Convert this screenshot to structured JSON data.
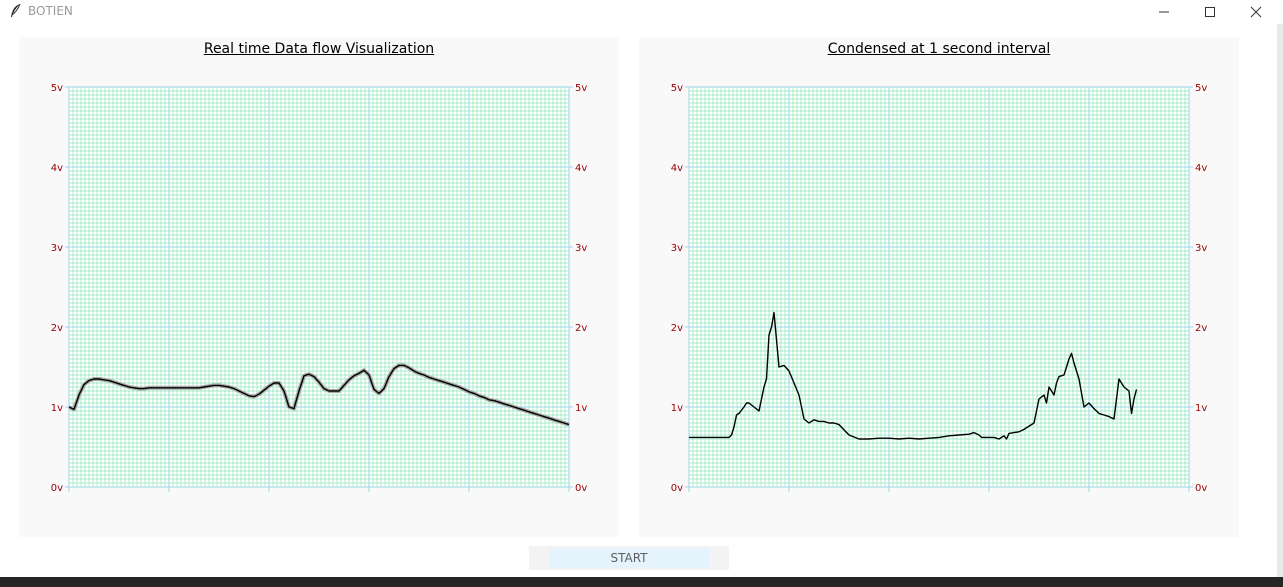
{
  "window": {
    "title": "BOTIEN",
    "icon": "feather-icon"
  },
  "colors": {
    "grid_minor": "#8fe6b8",
    "grid_major": "#9ad5ea",
    "tick_label": "#990000",
    "trace": "#000000",
    "trace_shadow": "#a8a8a8",
    "button_bg": "#e5f3fd"
  },
  "start_button": {
    "label": "START"
  },
  "charts": [
    {
      "id": "realtime",
      "title": "Real time Data flow Visualization",
      "chart_data": {
        "type": "line",
        "title": "Real time Data flow Visualization",
        "y_ticks": [
          "0v",
          "1v",
          "2v",
          "3v",
          "4v",
          "5v"
        ],
        "ylim": [
          0,
          5
        ],
        "xlim": [
          0,
          100
        ],
        "grid": true,
        "y_labels_both_sides": true,
        "series": [
          {
            "x": [
              0,
              1,
              2,
              3,
              4,
              5,
              6,
              7,
              8,
              9,
              10,
              11,
              12,
              13,
              14,
              15,
              16,
              17,
              18,
              19,
              20,
              21,
              22,
              23,
              24,
              25,
              26,
              27,
              28,
              29,
              30,
              31,
              32,
              33,
              34,
              35,
              36,
              37,
              38,
              39,
              40,
              41,
              42,
              43,
              44,
              45,
              46,
              47,
              48,
              49,
              50,
              51,
              52,
              53,
              54,
              55,
              56,
              57,
              58,
              59,
              60,
              61,
              62,
              63,
              64,
              65,
              66,
              67,
              68,
              69,
              70,
              71,
              72,
              73,
              74,
              75,
              76,
              77,
              78,
              79,
              80,
              81,
              82,
              83,
              84,
              85,
              86,
              87,
              88,
              89,
              90,
              91,
              92,
              93,
              94,
              95,
              96,
              97,
              98,
              99,
              100
            ],
            "y": [
              1.0,
              0.97,
              1.15,
              1.28,
              1.33,
              1.35,
              1.35,
              1.34,
              1.33,
              1.31,
              1.29,
              1.27,
              1.25,
              1.24,
              1.23,
              1.23,
              1.24,
              1.24,
              1.24,
              1.24,
              1.24,
              1.24,
              1.24,
              1.24,
              1.24,
              1.24,
              1.24,
              1.25,
              1.26,
              1.27,
              1.27,
              1.26,
              1.25,
              1.23,
              1.2,
              1.17,
              1.14,
              1.13,
              1.16,
              1.21,
              1.26,
              1.3,
              1.3,
              1.2,
              1.0,
              0.98,
              1.2,
              1.39,
              1.41,
              1.38,
              1.31,
              1.23,
              1.2,
              1.2,
              1.2,
              1.27,
              1.34,
              1.39,
              1.42,
              1.46,
              1.4,
              1.22,
              1.17,
              1.23,
              1.38,
              1.48,
              1.52,
              1.52,
              1.49,
              1.45,
              1.42,
              1.4,
              1.37,
              1.35,
              1.33,
              1.31,
              1.29,
              1.27,
              1.25,
              1.22,
              1.19,
              1.17,
              1.14,
              1.12,
              1.09,
              1.08,
              1.06,
              1.04,
              1.02,
              1.0,
              0.98,
              0.96,
              0.94,
              0.92,
              0.9,
              0.88,
              0.86,
              0.84,
              0.82,
              0.8,
              0.78
            ]
          }
        ]
      }
    },
    {
      "id": "condensed",
      "title": "Condensed at 1 second interval",
      "chart_data": {
        "type": "line",
        "title": "Condensed at 1 second interval",
        "y_ticks": [
          "0v",
          "1v",
          "2v",
          "3v",
          "4v",
          "5v"
        ],
        "ylim": [
          0,
          5
        ],
        "xlim": [
          0,
          100
        ],
        "grid": true,
        "y_labels_both_sides": true,
        "series": [
          {
            "x": [
              0,
              8,
              8.5,
              9,
              9.5,
              10,
              11,
              11.5,
              12,
              13,
              14,
              15,
              15.5,
              16,
              16.5,
              17,
              18,
              19,
              20,
              21,
              22,
              22.5,
              23,
              24,
              25,
              26,
              27,
              28,
              29,
              30,
              32,
              34,
              36,
              38,
              40,
              42,
              44,
              46,
              48,
              50,
              52,
              54,
              56,
              57,
              58,
              58.5,
              59,
              60,
              61,
              62,
              62.5,
              63,
              63.5,
              64,
              65,
              66,
              67,
              69,
              70,
              71,
              71.5,
              72,
              73,
              73.5,
              74,
              75,
              76,
              76.5,
              77,
              78,
              79,
              80,
              81,
              82,
              83,
              84,
              85,
              86,
              87,
              88,
              88.5,
              89,
              89.5
            ],
            "y": [
              0.62,
              0.62,
              0.65,
              0.75,
              0.9,
              0.92,
              1.0,
              1.05,
              1.05,
              1.0,
              0.95,
              1.25,
              1.35,
              1.9,
              2.0,
              2.18,
              1.5,
              1.52,
              1.45,
              1.3,
              1.15,
              1.0,
              0.85,
              0.8,
              0.84,
              0.82,
              0.82,
              0.8,
              0.8,
              0.78,
              0.65,
              0.6,
              0.6,
              0.61,
              0.61,
              0.6,
              0.61,
              0.6,
              0.61,
              0.62,
              0.64,
              0.65,
              0.66,
              0.68,
              0.65,
              0.62,
              0.62,
              0.62,
              0.62,
              0.6,
              0.62,
              0.64,
              0.6,
              0.67,
              0.68,
              0.69,
              0.72,
              0.8,
              1.1,
              1.15,
              1.05,
              1.25,
              1.15,
              1.3,
              1.38,
              1.4,
              1.6,
              1.67,
              1.55,
              1.35,
              1.0,
              1.05,
              0.98,
              0.92,
              0.9,
              0.88,
              0.85,
              1.35,
              1.25,
              1.2,
              0.92,
              1.1,
              1.22
            ]
          }
        ]
      }
    }
  ]
}
